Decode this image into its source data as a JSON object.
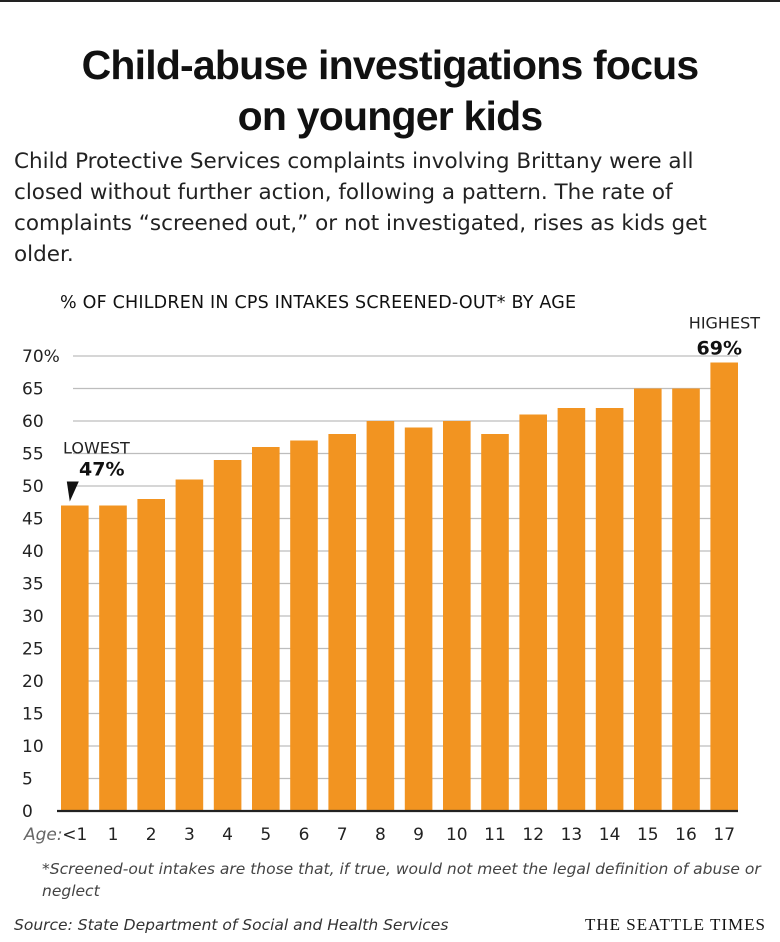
{
  "header": {
    "title_line1": "Child-abuse investigations focus",
    "title_line2": "on younger kids",
    "subtitle": "Child Protective Services complaints involving Brittany were all closed without further action, following a pattern. The rate of complaints “screened out,” or not investigated, rises as kids get older."
  },
  "colors": {
    "bar": "#f29421",
    "grid": "#bdbdbd",
    "axis": "#222222"
  },
  "chart_data": {
    "type": "bar",
    "title": "% OF CHILDREN IN CPS INTAKES SCREENED-OUT* BY AGE",
    "xlabel": "Age:",
    "ylabel": "",
    "categories": [
      "<1",
      "1",
      "2",
      "3",
      "4",
      "5",
      "6",
      "7",
      "8",
      "9",
      "10",
      "11",
      "12",
      "13",
      "14",
      "15",
      "16",
      "17"
    ],
    "values": [
      47,
      47,
      48,
      51,
      54,
      56,
      57,
      58,
      60,
      59,
      60,
      58,
      61,
      62,
      62,
      65,
      65,
      69
    ],
    "ylim": [
      0,
      70
    ],
    "yticks": [
      0,
      5,
      10,
      15,
      20,
      25,
      30,
      35,
      40,
      45,
      50,
      55,
      60,
      65,
      70
    ],
    "ytick_labels": [
      "0",
      "5",
      "10",
      "15",
      "20",
      "25",
      "30",
      "35",
      "40",
      "45",
      "50",
      "55",
      "60",
      "65",
      "70%"
    ],
    "grid": true,
    "annotations": [
      {
        "category": "<1",
        "label": "LOWEST",
        "value_text": "47%"
      },
      {
        "category": "17",
        "label": "HIGHEST",
        "value_text": "69%"
      }
    ]
  },
  "footer": {
    "footnote": "*Screened-out intakes are those that, if true, would not meet the legal definition of abuse or neglect",
    "source": "Source: State Department of Social and Health Services",
    "brand": "THE SEATTLE TIMES"
  }
}
